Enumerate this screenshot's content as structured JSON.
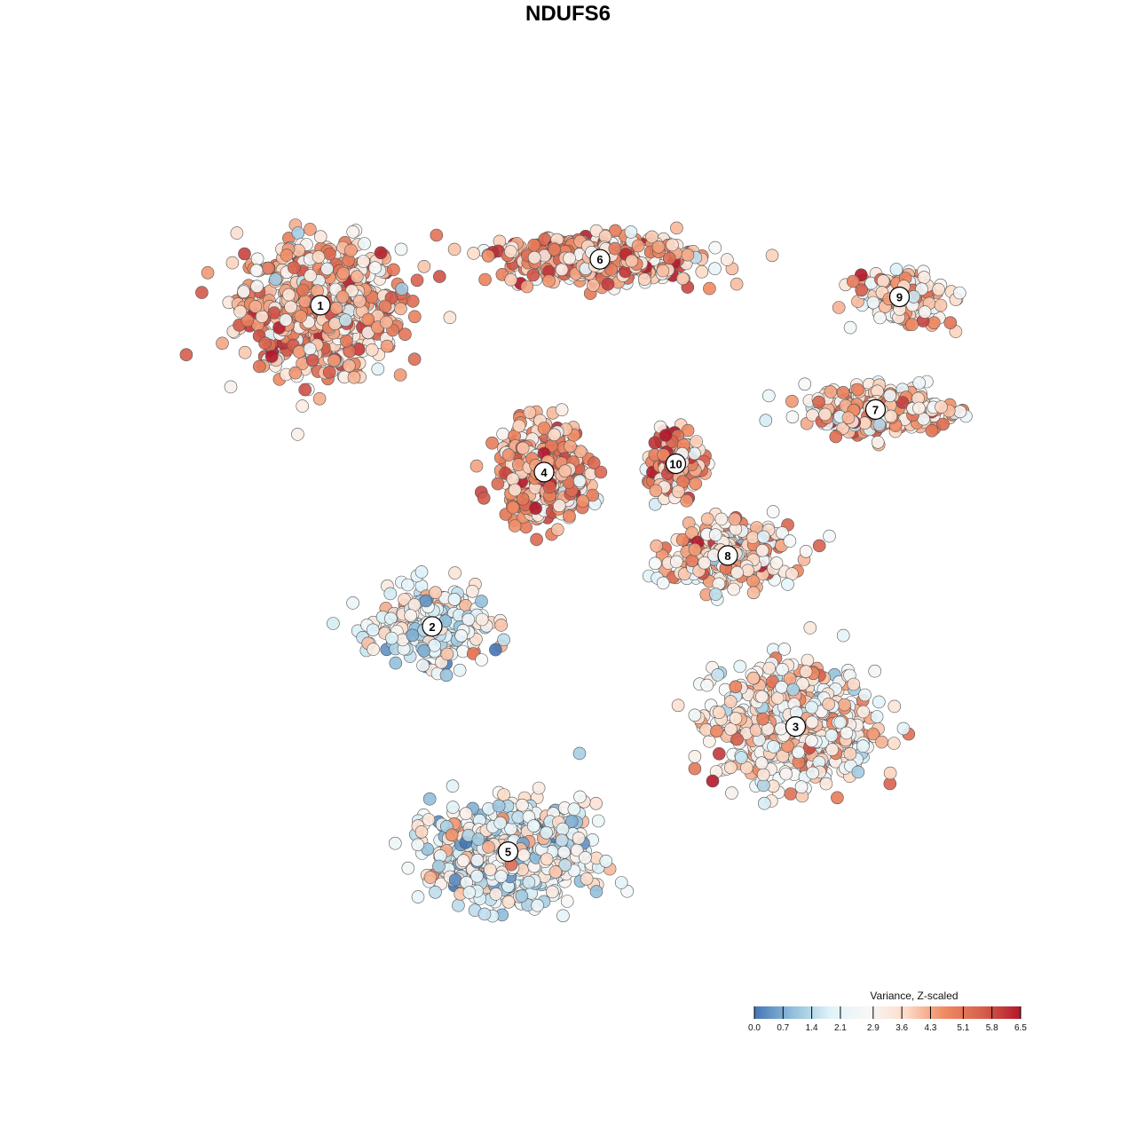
{
  "chart_data": {
    "type": "scatter",
    "title": "NDUFS6",
    "xlabel": "",
    "ylabel": "",
    "color_scale": {
      "title": "Variance, Z-scaled",
      "min": 0.0,
      "max": 6.5,
      "ticks": [
        "0.0",
        "0.7",
        "1.4",
        "2.1",
        "2.9",
        "3.6",
        "4.3",
        "5.1",
        "5.8",
        "6.5"
      ],
      "colors": [
        "#4575b4",
        "#91bfdb",
        "#e0f3f8",
        "#f7f7f7",
        "#fddbc7",
        "#ef8a62",
        "#d6604d",
        "#b2182b"
      ]
    },
    "legend_position": "bottom-right",
    "grid": false,
    "clusters": [
      {
        "label": "1",
        "x": -0.62,
        "y": 0.63,
        "mean_value": 4.0,
        "spread_x": 0.18,
        "spread_y": 0.14,
        "n": 700
      },
      {
        "label": "2",
        "x": -0.34,
        "y": -0.14,
        "mean_value": 2.3,
        "spread_x": 0.12,
        "spread_y": 0.08,
        "n": 260
      },
      {
        "label": "3",
        "x": 0.57,
        "y": -0.38,
        "mean_value": 3.2,
        "spread_x": 0.18,
        "spread_y": 0.12,
        "n": 650
      },
      {
        "label": "4",
        "x": -0.06,
        "y": 0.23,
        "mean_value": 4.4,
        "spread_x": 0.1,
        "spread_y": 0.1,
        "n": 420
      },
      {
        "label": "5",
        "x": -0.15,
        "y": -0.68,
        "mean_value": 2.2,
        "spread_x": 0.17,
        "spread_y": 0.1,
        "n": 750
      },
      {
        "label": "6",
        "x": 0.08,
        "y": 0.74,
        "mean_value": 4.2,
        "spread_x": 0.22,
        "spread_y": 0.05,
        "n": 520
      },
      {
        "label": "7",
        "x": 0.77,
        "y": 0.38,
        "mean_value": 3.9,
        "spread_x": 0.16,
        "spread_y": 0.05,
        "n": 300
      },
      {
        "label": "8",
        "x": 0.4,
        "y": 0.03,
        "mean_value": 3.6,
        "spread_x": 0.14,
        "spread_y": 0.07,
        "n": 300
      },
      {
        "label": "9",
        "x": 0.83,
        "y": 0.65,
        "mean_value": 3.4,
        "spread_x": 0.1,
        "spread_y": 0.05,
        "n": 200
      },
      {
        "label": "10",
        "x": 0.27,
        "y": 0.25,
        "mean_value": 4.6,
        "spread_x": 0.06,
        "spread_y": 0.07,
        "n": 150
      }
    ]
  }
}
